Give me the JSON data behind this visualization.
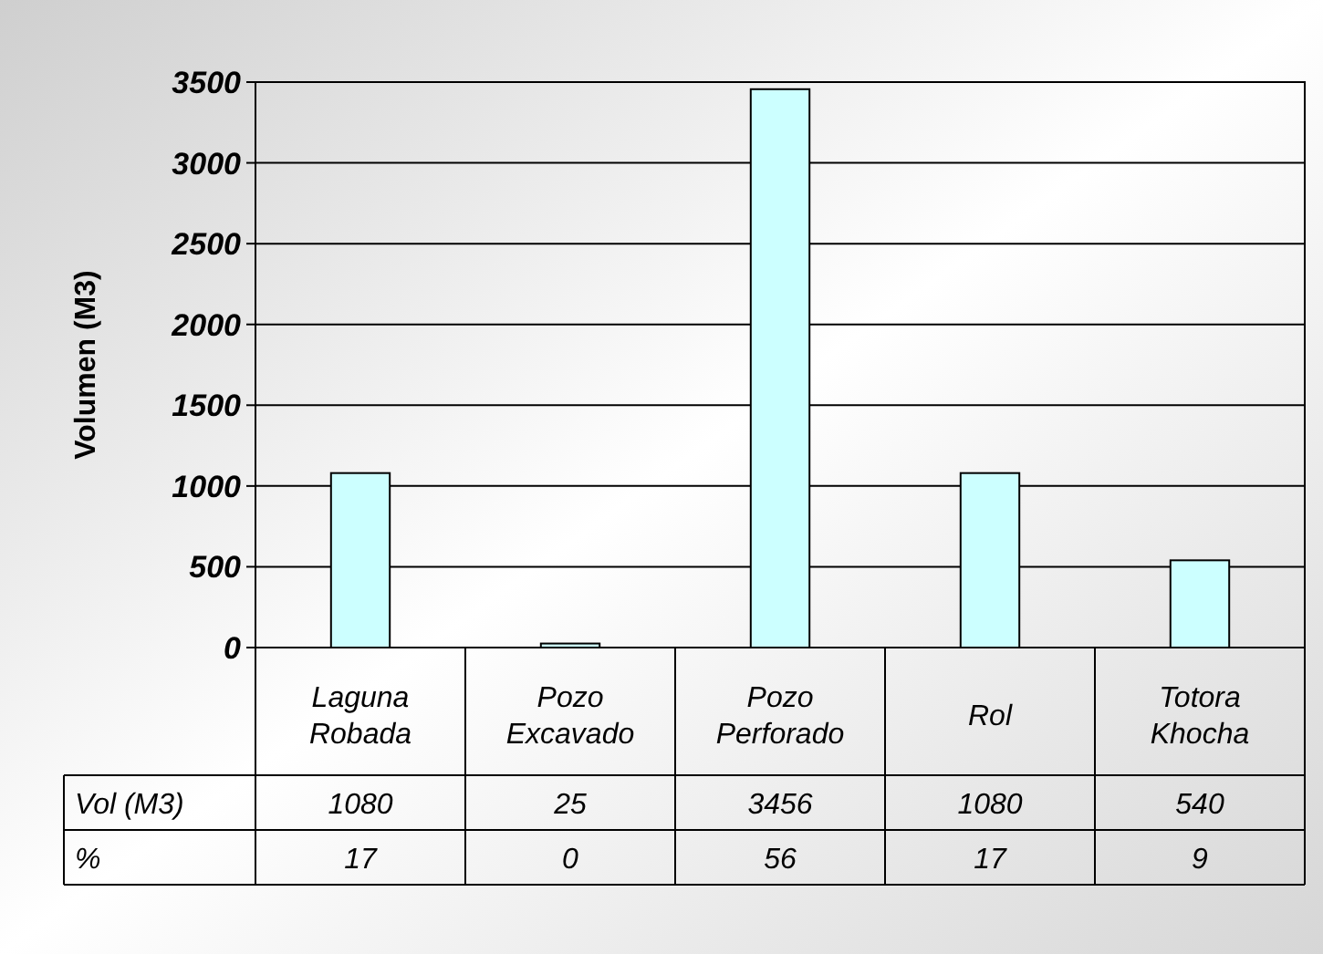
{
  "chart_data": {
    "type": "bar",
    "ylabel": "Volumen (M3)",
    "categories": [
      "Laguna Robada",
      "Pozo Excavado",
      "Pozo Perforado",
      "Rol",
      "Totora Khocha"
    ],
    "series": [
      {
        "name": "Vol (M3)",
        "color": "#ccffff",
        "values": [
          1080,
          25,
          3456,
          1080,
          540
        ]
      }
    ],
    "ylim": [
      0,
      3500
    ],
    "yticks": [
      0,
      500,
      1000,
      1500,
      2000,
      2500,
      3000,
      3500
    ],
    "grid": "y",
    "data_labels": true,
    "annotations": [
      "%",
      "17",
      "0",
      "56",
      "17",
      "9"
    ]
  }
}
